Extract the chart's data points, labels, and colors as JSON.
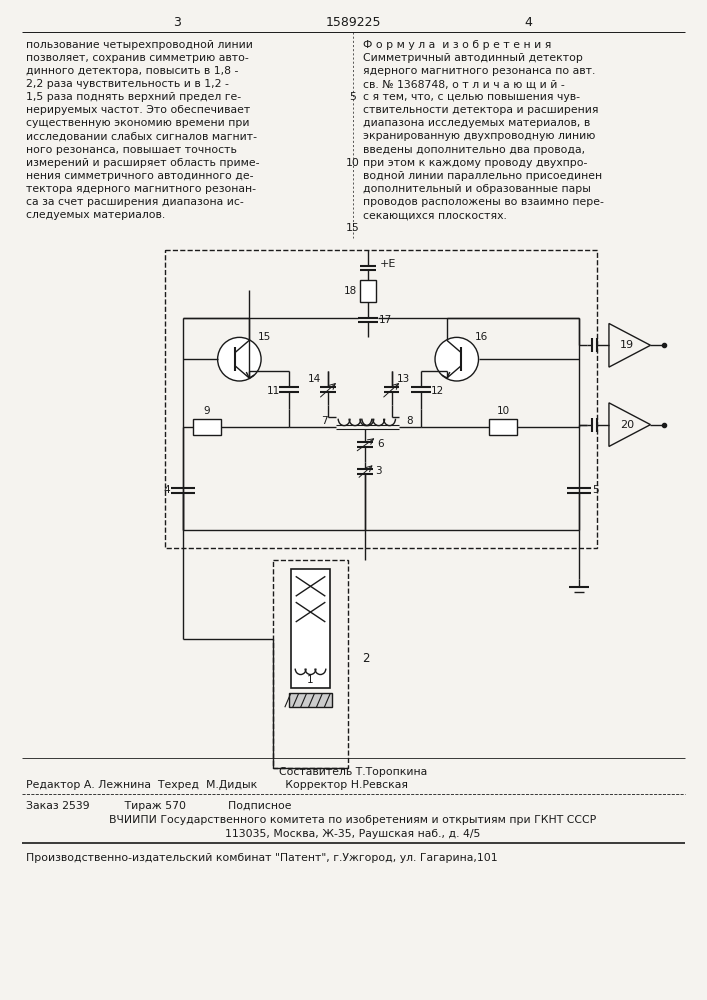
{
  "page_color": "#f5f3ef",
  "text_color": "#1a1a1a",
  "left_text": [
    "пользование четырехпроводной линии",
    "позволяет, сохранив симметрию авто-",
    "динного детектора, повысить в 1,8 -",
    "2,2 раза чувствительность и в 1,2 -",
    "1,5 раза поднять верхний предел ге-",
    "нерируемых частот. Это обеспечивает",
    "существенную экономию времени при",
    "исследовании слабых сигналов магнит-",
    "ного резонанса, повышает точность",
    "измерений и расширяет область приме-",
    "нения симметричного автодинного де-",
    "тектора ядерного магнитного резонан-",
    "са за счет расширения диапазона ис-",
    "следуемых материалов."
  ],
  "right_text_title": "Ф о р м у л а  и з о б р е т е н и я",
  "right_text": [
    "Симметричный автодинный детектор",
    "ядерного магнитного резонанса по авт.",
    "св. № 1368748, о т л и ч а ю щ и й -",
    "с я тем, что, с целью повышения чув-",
    "ствительности детектора и расширения",
    "диапазона исследуемых материалов, в",
    "экранированную двухпроводную линию",
    "введены дополнительно два провода,",
    "при этом к каждому проводу двухпро-",
    "водной линии параллельно присоединен",
    "дополнительный и образованные пары",
    "проводов расположены во взаимно пере-",
    "секающихся плоскостях."
  ],
  "line_numbers": [
    "5",
    "10",
    "15"
  ],
  "header_number": "15",
  "bottom_text1": "Составитель Т.Торопкина",
  "bottom_text2": "Редактор А. Лежнина  Техред  М.Дидык        Корректор Н.Ревская",
  "bottom_text3": "Заказ 2539          Тираж 570            Подписное",
  "bottom_text4": "ВЧИИПИ Государственного комитета по изобретениям и открытиям при ГКНТ СССР",
  "bottom_text5": "113035, Москва, Ж-35, Раушская наб., д. 4/5",
  "bottom_text6": "Производственно-издательский комбинат \"Патент\", г.Ужгород, ул. Гагарина,101"
}
